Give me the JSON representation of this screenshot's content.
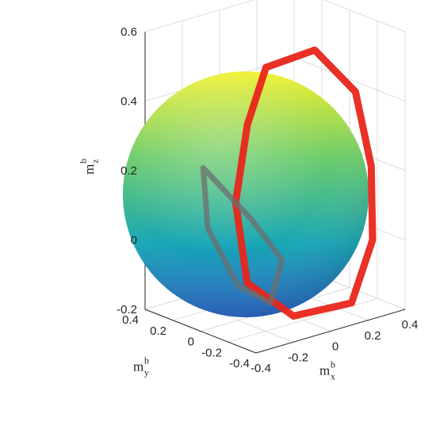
{
  "chart_data": {
    "type": "scatter",
    "subtype": "3d-sphere-with-trajectory",
    "title": "",
    "axes": {
      "x": {
        "label": "m",
        "label_sub": "x",
        "label_sup": "b",
        "range": [
          -0.4,
          0.4
        ],
        "ticks": [
          "-0.4",
          "-0.2",
          "0",
          "0.2",
          "0.4"
        ]
      },
      "y": {
        "label": "m",
        "label_sub": "y",
        "label_sup": "b",
        "range": [
          -0.4,
          0.4
        ],
        "ticks": [
          "-0.4",
          "-0.2",
          "0",
          "0.2",
          "0.4"
        ]
      },
      "z": {
        "label": "m",
        "label_sub": "z",
        "label_sup": "b",
        "range": [
          -0.2,
          0.6
        ],
        "ticks": [
          "-0.2",
          "0",
          "0.2",
          "0.4",
          "0.6"
        ]
      }
    },
    "grid": true,
    "surface": {
      "shape": "sphere",
      "colormap": "parula",
      "colors": [
        "#2a64c8",
        "#17a6b6",
        "#6ccc6a",
        "#f2f02c"
      ]
    },
    "series": [
      {
        "color": "#e8261a",
        "description_points": [
          [
            0.1,
            0.2,
            0.45
          ],
          [
            0.25,
            0.05,
            0.5
          ],
          [
            0.32,
            -0.15,
            0.4
          ],
          [
            0.33,
            -0.25,
            0.2
          ],
          [
            0.3,
            -0.3,
            0.0
          ],
          [
            0.15,
            -0.35,
            -0.15
          ],
          [
            -0.05,
            -0.2,
            -0.18
          ],
          [
            -0.15,
            0.0,
            -0.1
          ],
          [
            -0.1,
            0.15,
            0.1
          ],
          [
            0.0,
            0.2,
            0.3
          ],
          [
            0.1,
            0.2,
            0.45
          ]
        ]
      },
      {
        "color": "#6e6e6e",
        "description_points": [
          [
            -0.2,
            0.25,
            0.2
          ],
          [
            -0.25,
            0.15,
            0.05
          ],
          [
            -0.2,
            0.0,
            -0.1
          ],
          [
            -0.1,
            -0.1,
            -0.15
          ],
          [
            0.0,
            -0.05,
            -0.05
          ],
          [
            -0.05,
            0.1,
            0.05
          ],
          [
            -0.2,
            0.25,
            0.2
          ]
        ]
      }
    ]
  }
}
